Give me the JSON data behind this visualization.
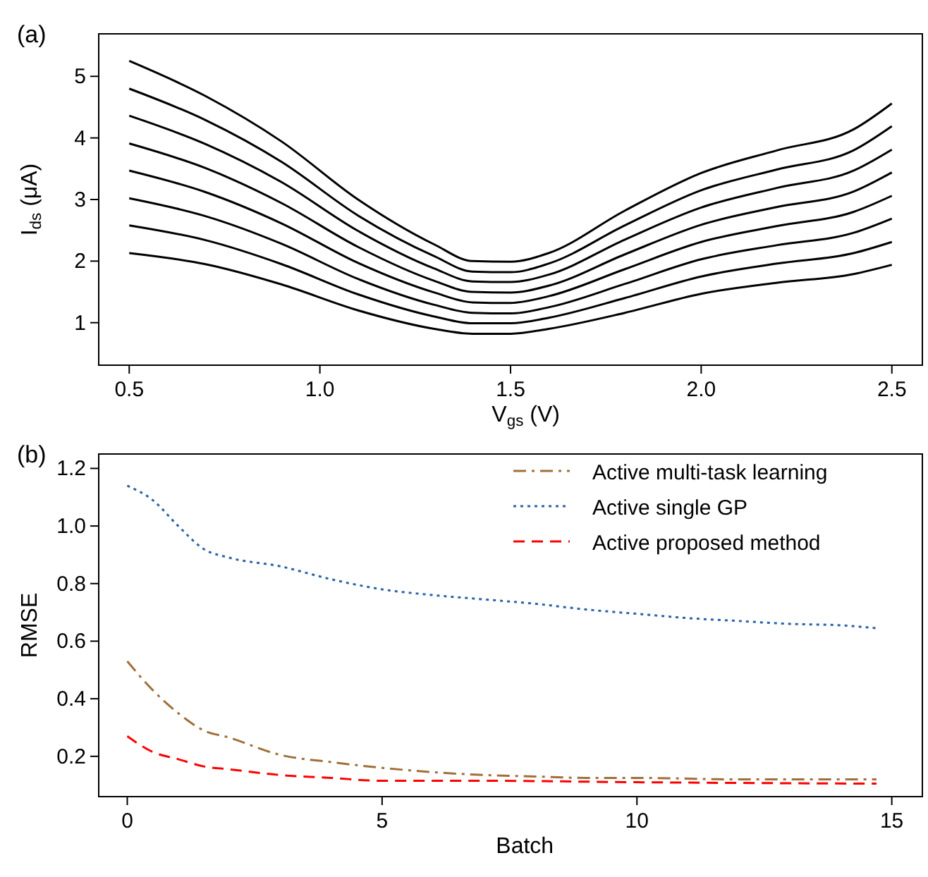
{
  "chart_data": [
    {
      "type": "line",
      "annotations": [
        "(a)"
      ],
      "xlabel": "V$_{gs}$ (V)",
      "ylabel": "I$_{ds}$ (μA)",
      "x": [
        0.5,
        0.7,
        0.9,
        1.1,
        1.3,
        1.4,
        1.5,
        1.6,
        1.8,
        2.0,
        2.2,
        2.4,
        2.5
      ],
      "xlim": [
        0.42,
        2.58
      ],
      "ylim": [
        0.31,
        5.69
      ],
      "xticks": [
        0.5,
        {
          "value": 1,
          "label": "1.0"
        },
        1.5,
        {
          "value": 2,
          "label": "2.0"
        },
        2.5
      ],
      "yticks": [
        1,
        2,
        3,
        4,
        5
      ],
      "grid": false,
      "legend": false,
      "line_style": "solid",
      "series": [
        {
          "color": "#000000",
          "values": [
            2.13,
            1.95,
            1.62,
            1.2,
            0.9,
            0.82,
            0.82,
            0.9,
            1.16,
            1.47,
            1.65,
            1.79,
            1.94
          ]
        },
        {
          "color": "#000000",
          "values": [
            2.58,
            2.34,
            1.95,
            1.46,
            1.1,
            0.99,
            0.99,
            1.08,
            1.4,
            1.75,
            1.96,
            2.13,
            2.31
          ]
        },
        {
          "color": "#000000",
          "values": [
            3.02,
            2.73,
            2.28,
            1.71,
            1.29,
            1.16,
            1.15,
            1.25,
            1.63,
            2.03,
            2.26,
            2.46,
            2.69
          ]
        },
        {
          "color": "#000000",
          "values": [
            3.47,
            3.12,
            2.61,
            1.97,
            1.49,
            1.33,
            1.32,
            1.43,
            1.87,
            2.31,
            2.57,
            2.8,
            3.06
          ]
        },
        {
          "color": "#000000",
          "values": [
            3.91,
            3.51,
            2.94,
            2.23,
            1.68,
            1.5,
            1.49,
            1.6,
            2.11,
            2.59,
            2.88,
            3.13,
            3.44
          ]
        },
        {
          "color": "#000000",
          "values": [
            4.36,
            3.9,
            3.28,
            2.49,
            1.88,
            1.67,
            1.66,
            1.78,
            2.35,
            2.87,
            3.19,
            3.47,
            3.81
          ]
        },
        {
          "color": "#000000",
          "values": [
            4.8,
            4.29,
            3.61,
            2.74,
            2.08,
            1.83,
            1.82,
            1.96,
            2.58,
            3.15,
            3.49,
            3.8,
            4.19
          ]
        },
        {
          "color": "#000000",
          "values": [
            5.25,
            4.68,
            3.94,
            3.0,
            2.27,
            2.0,
            1.99,
            2.13,
            2.82,
            3.43,
            3.8,
            4.14,
            4.56
          ]
        }
      ]
    },
    {
      "type": "line",
      "annotations": [
        "(b)"
      ],
      "xlabel": "Batch",
      "ylabel": "RMSE",
      "xlim": [
        -0.56,
        15.6
      ],
      "ylim": [
        0.06,
        1.25
      ],
      "xticks": [
        0,
        5,
        10,
        15
      ],
      "yticks": [
        0.2,
        0.4,
        0.6,
        0.8,
        {
          "value": 1,
          "label": "1.0"
        },
        1.2
      ],
      "grid": false,
      "legend": "top right",
      "series": [
        {
          "name": "Active multi-task learning",
          "color": "#a0703a",
          "line_style": "dashdot",
          "x": [
            0,
            0.5,
            1,
            1.5,
            2,
            3,
            4,
            5,
            6,
            7,
            8,
            9,
            10,
            12,
            14.7
          ],
          "values": [
            0.53,
            0.43,
            0.35,
            0.29,
            0.265,
            0.205,
            0.18,
            0.16,
            0.145,
            0.135,
            0.13,
            0.125,
            0.125,
            0.12,
            0.12
          ]
        },
        {
          "name": "Active single GP",
          "color": "#2a62a8",
          "line_style": "dotted",
          "x": [
            0,
            0.5,
            1,
            1.5,
            2,
            3,
            4,
            5,
            6,
            7,
            8,
            9,
            10,
            11,
            12,
            13,
            14,
            14.7
          ],
          "values": [
            1.14,
            1.09,
            1.0,
            0.92,
            0.89,
            0.86,
            0.815,
            0.78,
            0.76,
            0.745,
            0.73,
            0.71,
            0.695,
            0.68,
            0.67,
            0.66,
            0.655,
            0.645
          ]
        },
        {
          "name": "Active proposed method",
          "color": "#ff0000",
          "line_style": "dashed",
          "x": [
            0,
            0.5,
            1,
            1.5,
            2,
            3,
            4,
            5,
            7,
            10,
            14.7
          ],
          "values": [
            0.27,
            0.215,
            0.19,
            0.165,
            0.155,
            0.135,
            0.125,
            0.115,
            0.115,
            0.11,
            0.105
          ]
        }
      ]
    }
  ]
}
